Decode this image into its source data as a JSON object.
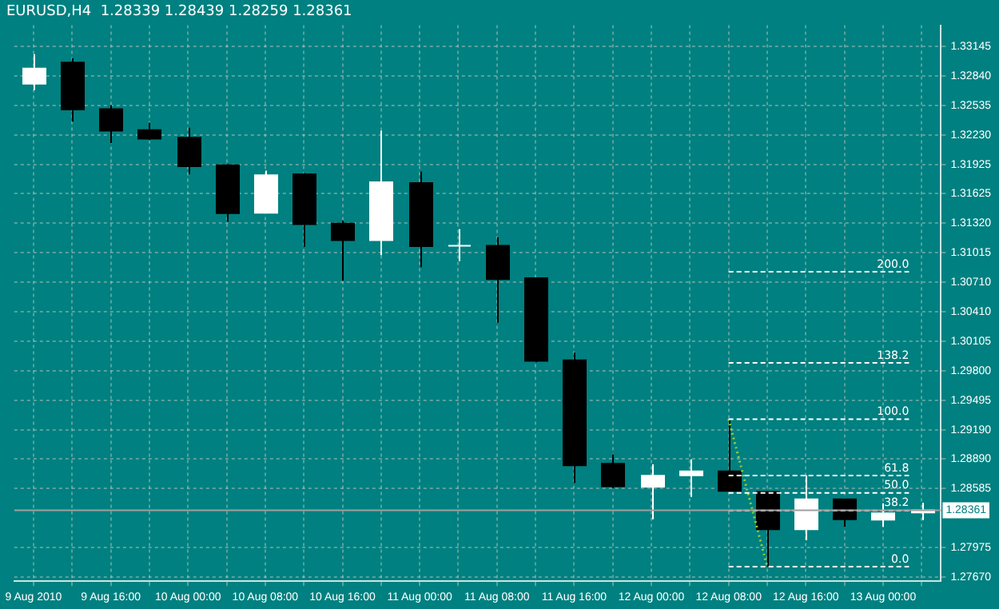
{
  "chart_data": {
    "type": "candlestick",
    "title": "EURUSD,H4  1.28339 1.28439 1.28259 1.28361",
    "categories": [
      "9 Aug 2010",
      null,
      "9 Aug 16:00",
      null,
      "10 Aug 00:00",
      null,
      "10 Aug 08:00",
      null,
      "10 Aug 16:00",
      null,
      "11 Aug 00:00",
      null,
      "11 Aug 08:00",
      null,
      "11 Aug 16:00",
      null,
      "12 Aug 00:00",
      null,
      "12 Aug 08:00",
      null,
      "12 Aug 16:00",
      null,
      "13 Aug 00:00",
      null
    ],
    "ohlc": [
      [
        1.32758,
        1.33063,
        1.32692,
        1.32913
      ],
      [
        1.32975,
        1.33021,
        1.32367,
        1.32491
      ],
      [
        1.32495,
        1.32537,
        1.32146,
        1.32274
      ],
      [
        1.32279,
        1.32356,
        1.32177,
        1.32192
      ],
      [
        1.32201,
        1.32305,
        1.31825,
        1.31907
      ],
      [
        1.31918,
        1.31929,
        1.31335,
        1.31423
      ],
      [
        1.31428,
        1.31861,
        1.3142,
        1.31815
      ],
      [
        1.31825,
        1.31836,
        1.31078,
        1.3131
      ],
      [
        1.31315,
        1.31346,
        1.30727,
        1.31145
      ],
      [
        1.31145,
        1.32274,
        1.3099,
        1.31743
      ],
      [
        1.31733,
        1.31852,
        1.30866,
        1.31083
      ],
      [
        1.31087,
        1.31258,
        1.30928,
        1.31087
      ],
      [
        1.31087,
        1.31176,
        1.30294,
        1.30743
      ],
      [
        1.30753,
        1.30753,
        1.29887,
        1.29902
      ],
      [
        1.29907,
        1.29985,
        1.28643,
        1.28824
      ],
      [
        1.2884,
        1.28937,
        1.28588,
        1.28608
      ],
      [
        1.28603,
        1.28835,
        1.28267,
        1.28716
      ],
      [
        1.28721,
        1.28886,
        1.28499,
        1.28762
      ],
      [
        1.28762,
        1.29299,
        1.28561,
        1.28561
      ],
      [
        1.2855,
        1.2855,
        1.27777,
        1.28164
      ],
      [
        1.28164,
        1.28721,
        1.28051,
        1.28473
      ],
      [
        1.28473,
        1.28473,
        1.2819,
        1.28267
      ],
      [
        1.28263,
        1.28433,
        1.2819,
        1.28329
      ],
      [
        1.28339,
        1.28439,
        1.28259,
        1.28361
      ]
    ],
    "colors": [
      "#ffffff",
      "#000000",
      "#000000",
      "#000000",
      "#000000",
      "#000000",
      "#ffffff",
      "#000000",
      "#000000",
      "#ffffff",
      "#000000",
      "#ffffff",
      "#000000",
      "#000000",
      "#000000",
      "#000000",
      "#ffffff",
      "#ffffff",
      "#000000",
      "#000000",
      "#ffffff",
      "#000000",
      "#ffffff",
      "#ffffff"
    ],
    "series": [
      {
        "type": "line",
        "color": "#9acd32",
        "line_style": "dotted",
        "values": [
          null,
          null,
          null,
          null,
          null,
          null,
          null,
          null,
          null,
          null,
          null,
          null,
          null,
          null,
          null,
          null,
          null,
          null,
          1.293,
          1.2778,
          null,
          null,
          null,
          null
        ]
      }
    ],
    "ylim": [
      1.2763,
      1.3336
    ],
    "yticks": [
      {
        "value": 1.33145,
        "label": "1.33145"
      },
      {
        "value": 1.3284,
        "label": "1.32840"
      },
      {
        "value": 1.32535,
        "label": "1.32535"
      },
      {
        "value": 1.3223,
        "label": "1.32230"
      },
      {
        "value": 1.31925,
        "label": "1.31925"
      },
      {
        "value": 1.31625,
        "label": "1.31625"
      },
      {
        "value": 1.3132,
        "label": "1.31320"
      },
      {
        "value": 1.31015,
        "label": "1.31015"
      },
      {
        "value": 1.3071,
        "label": "1.30710"
      },
      {
        "value": 1.3041,
        "label": "1.30410"
      },
      {
        "value": 1.30105,
        "label": "1.30105"
      },
      {
        "value": 1.298,
        "label": "1.29800"
      },
      {
        "value": 1.29495,
        "label": "1.29495"
      },
      {
        "value": 1.2919,
        "label": "1.29190"
      },
      {
        "value": 1.2889,
        "label": "1.28890"
      },
      {
        "value": 1.28585,
        "label": "1.28585"
      },
      {
        "value": 1.27975,
        "label": "1.27975"
      },
      {
        "value": 1.2767,
        "label": "1.27670"
      }
    ],
    "annotations": [
      {
        "text": "200.0",
        "y": 1.3082
      },
      {
        "text": "138.2",
        "y": 1.29881
      },
      {
        "text": "100.0",
        "y": 1.293
      },
      {
        "text": "61.8",
        "y": 1.28719
      },
      {
        "text": "50.0",
        "y": 1.2854
      },
      {
        "text": "38.2",
        "y": 1.28359
      },
      {
        "text": "0.0",
        "y": 1.2778
      }
    ],
    "ref_lines": [
      {
        "axis": "y",
        "value": 1.3082,
        "color": "#ffffff",
        "line_style": "dashed"
      },
      {
        "axis": "y",
        "value": 1.29881,
        "color": "#ffffff",
        "line_style": "dashed"
      },
      {
        "axis": "y",
        "value": 1.293,
        "color": "#ffffff",
        "line_style": "dashed"
      },
      {
        "axis": "y",
        "value": 1.28719,
        "color": "#ffffff",
        "line_style": "dashed"
      },
      {
        "axis": "y",
        "value": 1.2854,
        "color": "#ffffff",
        "line_style": "dashed"
      },
      {
        "axis": "y",
        "value": 1.28359,
        "color": "#ffffff",
        "line_style": "dashed"
      },
      {
        "axis": "y",
        "value": 1.2778,
        "color": "#ffffff",
        "line_style": "dashed"
      },
      {
        "axis": "y",
        "value": 1.28361,
        "label": "1.28361",
        "color": "#a0a0a0",
        "line_style": "solid"
      }
    ],
    "grid": true,
    "legend": false
  }
}
